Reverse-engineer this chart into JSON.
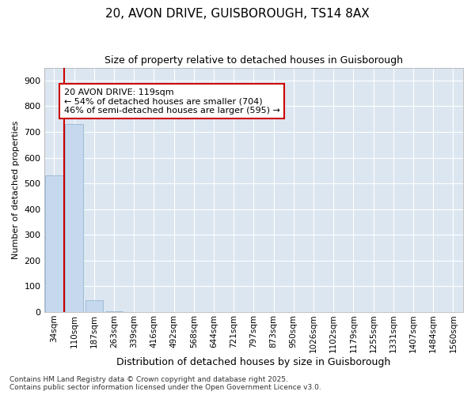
{
  "title_line1": "20, AVON DRIVE, GUISBOROUGH, TS14 8AX",
  "title_line2": "Size of property relative to detached houses in Guisborough",
  "xlabel": "Distribution of detached houses by size in Guisborough",
  "ylabel": "Number of detached properties",
  "bar_color": "#c5d8ed",
  "bar_edge_color": "#8ab0d0",
  "annotation_box_color": "#cc0000",
  "annotation_line1": "20 AVON DRIVE: 119sqm",
  "annotation_line2": "← 54% of detached houses are smaller (704)",
  "annotation_line3": "46% of semi-detached houses are larger (595) →",
  "property_line_color": "#cc0000",
  "background_color": "#dce6f1",
  "grid_color": "#ffffff",
  "footer_line1": "Contains HM Land Registry data © Crown copyright and database right 2025.",
  "footer_line2": "Contains public sector information licensed under the Open Government Licence v3.0.",
  "categories": [
    "34sqm",
    "110sqm",
    "187sqm",
    "263sqm",
    "339sqm",
    "416sqm",
    "492sqm",
    "568sqm",
    "644sqm",
    "721sqm",
    "797sqm",
    "873sqm",
    "950sqm",
    "1026sqm",
    "1102sqm",
    "1179sqm",
    "1255sqm",
    "1331sqm",
    "1407sqm",
    "1484sqm",
    "1560sqm"
  ],
  "values": [
    530,
    730,
    47,
    3,
    0,
    0,
    0,
    0,
    0,
    0,
    0,
    0,
    0,
    0,
    0,
    0,
    0,
    0,
    0,
    0,
    0
  ],
  "ylim": [
    0,
    950
  ],
  "yticks": [
    0,
    100,
    200,
    300,
    400,
    500,
    600,
    700,
    800,
    900
  ],
  "property_bar_index": 1,
  "figsize": [
    6.0,
    5.0
  ],
  "dpi": 100
}
